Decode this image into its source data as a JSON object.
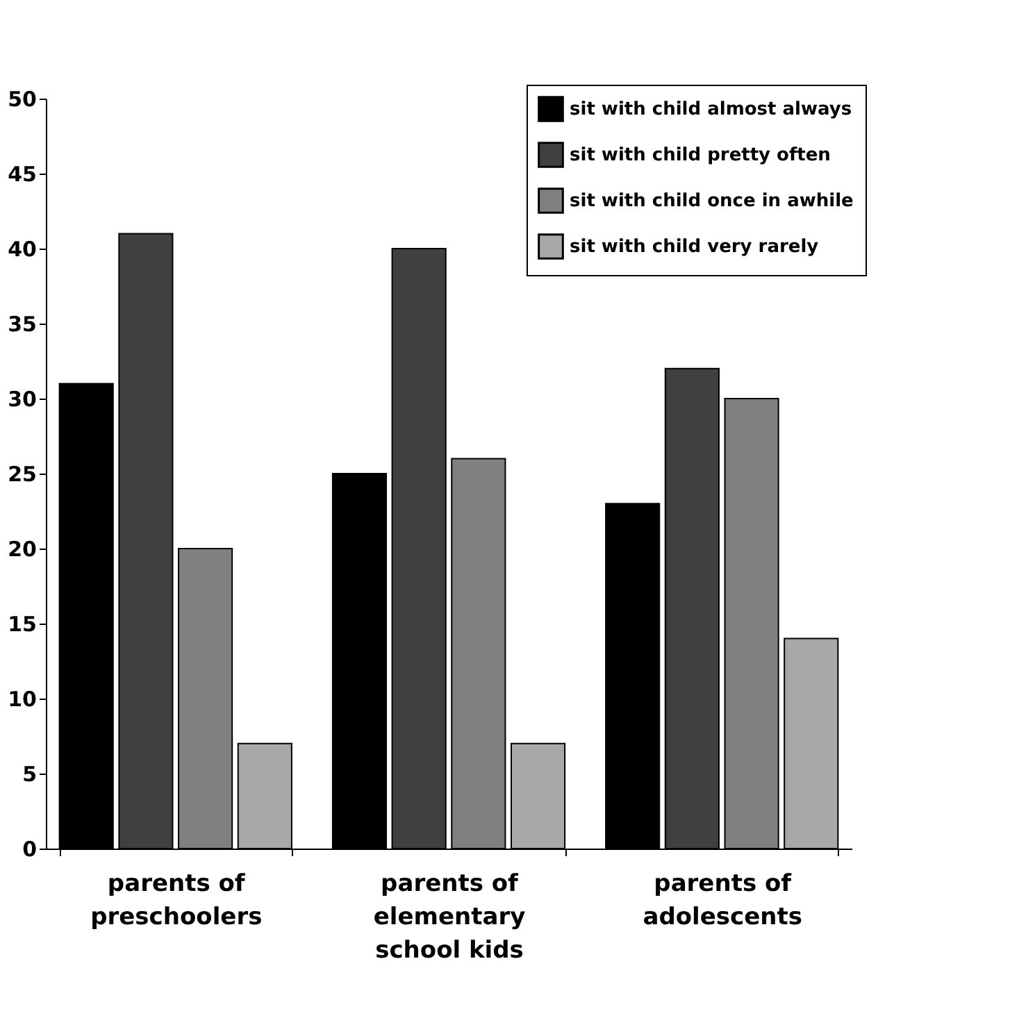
{
  "chart_data": {
    "type": "bar",
    "categories": [
      "parents of\npreschoolers",
      "parents of\nelementary\nschool kids",
      "parents of\nadolescents"
    ],
    "series": [
      {
        "name": "sit with child almost always",
        "color": "#000000",
        "values": [
          31,
          25,
          23
        ]
      },
      {
        "name": "sit with child pretty often",
        "color": "#404040",
        "values": [
          41,
          40,
          32
        ]
      },
      {
        "name": "sit with child once in awhile",
        "color": "#808080",
        "values": [
          20,
          26,
          30
        ]
      },
      {
        "name": "sit with child very rarely",
        "color": "#a8a8a8",
        "values": [
          7,
          7,
          14
        ]
      }
    ],
    "ylim": [
      0,
      50
    ],
    "yticks": [
      0,
      5,
      10,
      15,
      20,
      25,
      30,
      35,
      40,
      45,
      50
    ],
    "grid": false,
    "legend": "top right"
  }
}
